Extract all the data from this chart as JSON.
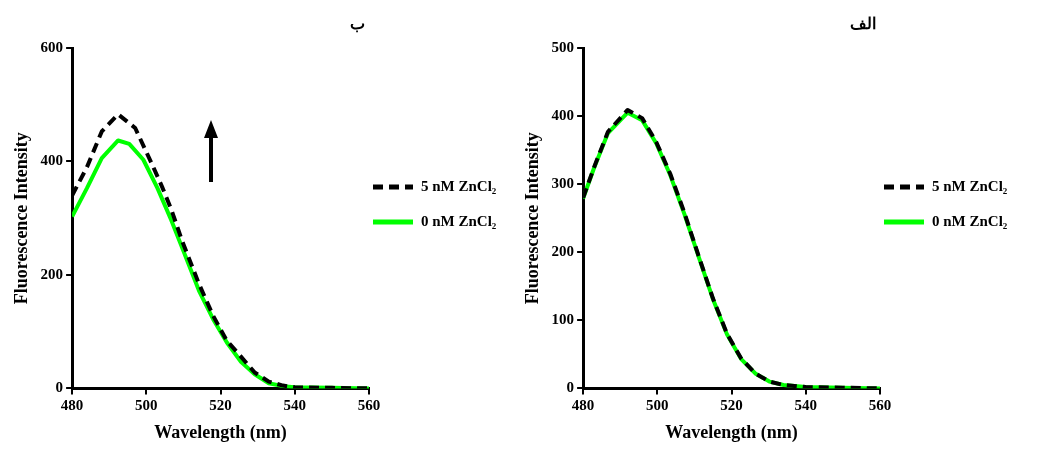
{
  "chart_data": [
    {
      "type": "line",
      "title": "ب",
      "xlabel": "Wavelength (nm)",
      "ylabel": "Fluorescence Intensity",
      "xlim": [
        480,
        560
      ],
      "xticks": [
        480,
        500,
        520,
        540,
        560
      ],
      "ylim": [
        0,
        600
      ],
      "yticks": [
        0,
        200,
        400,
        600
      ],
      "grid": false,
      "legend": "right",
      "marker": "none",
      "series": [
        {
          "name": "5 nM ZnCl₂",
          "color": "#000000",
          "line_style": "dashed",
          "x": [
            480,
            484,
            488,
            492.4,
            497,
            501.4,
            504.4,
            506.7,
            509.7,
            514.2,
            518,
            521.7,
            525.5,
            529.2,
            533,
            536.8,
            540,
            550,
            560
          ],
          "values": [
            340,
            390,
            453,
            483,
            459,
            397,
            353,
            316,
            259,
            184,
            128,
            84,
            56,
            28,
            12,
            5,
            2,
            1,
            0
          ]
        },
        {
          "name": "0 nM ZnCl₂",
          "color": "#00ff00",
          "line_style": "solid",
          "x": [
            480,
            484,
            488,
            492.4,
            495.4,
            499.2,
            503,
            506.7,
            510.5,
            514.2,
            518,
            521.7,
            525.5,
            529.2,
            533,
            536.8,
            540,
            550,
            560
          ],
          "values": [
            303,
            353,
            406,
            437,
            431,
            403,
            353,
            297,
            234,
            172,
            122,
            81,
            47,
            25,
            9,
            4,
            2,
            1,
            0
          ]
        }
      ]
    },
    {
      "type": "line",
      "title": "الف",
      "xlabel": "Wavelength (nm)",
      "ylabel": "Fluorescence Intensity",
      "xlim": [
        480,
        560
      ],
      "xticks": [
        480,
        500,
        520,
        540,
        560
      ],
      "ylim": [
        0,
        500
      ],
      "yticks": [
        0,
        100,
        200,
        300,
        400,
        500
      ],
      "grid": false,
      "legend": "right",
      "marker": "none",
      "series": [
        {
          "name": "5 nM ZnCl₂",
          "color": "#000000",
          "line_style": "dashed",
          "x": [
            480,
            482.9,
            486.7,
            492,
            495.9,
            499.7,
            503.5,
            507.3,
            511.1,
            515,
            518.8,
            522.6,
            526.4,
            530.2,
            534,
            540,
            550,
            560
          ],
          "values": [
            280,
            324,
            377,
            409,
            397,
            362,
            315,
            258,
            195,
            132,
            80,
            44,
            22,
            10,
            5,
            2,
            1,
            0
          ]
        },
        {
          "name": "0 nM ZnCl₂",
          "color": "#00ff00",
          "line_style": "solid",
          "x": [
            480,
            482.9,
            486.7,
            492,
            495.9,
            499.7,
            503.5,
            507.3,
            511.1,
            515,
            518.8,
            522.6,
            526.4,
            530.2,
            534,
            540,
            550,
            560
          ],
          "values": [
            279,
            323,
            375,
            405,
            394,
            360,
            313,
            256,
            194,
            131,
            79,
            43,
            22,
            10,
            5,
            2,
            1,
            0
          ]
        }
      ]
    }
  ]
}
